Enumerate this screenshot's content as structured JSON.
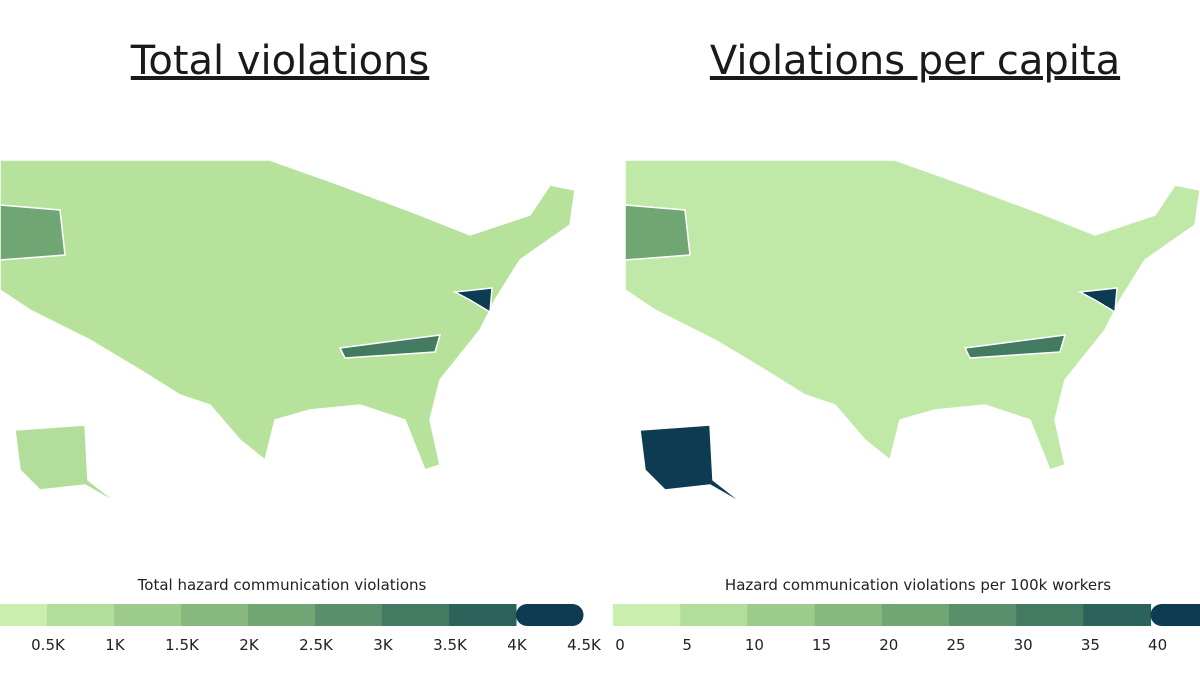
{
  "panels": [
    {
      "title": "Total violations",
      "legend": {
        "title": "Total hazard communication violations",
        "colors": [
          "#c9eeae",
          "#b3dd9a",
          "#9dcb8b",
          "#87b97f",
          "#70a574",
          "#598f6a",
          "#427a62",
          "#2b6259",
          "#0d3b52"
        ],
        "ticks": [
          {
            "value": 500,
            "label": "0.5K"
          },
          {
            "value": 1000,
            "label": "1K"
          },
          {
            "value": 1500,
            "label": "1.5K"
          },
          {
            "value": 2000,
            "label": "2K"
          },
          {
            "value": 2500,
            "label": "2.5K"
          },
          {
            "value": 3000,
            "label": "3K"
          },
          {
            "value": 3500,
            "label": "3.5K"
          },
          {
            "value": 4000,
            "label": "4K"
          },
          {
            "value": 4500,
            "label": "4.5K"
          }
        ]
      }
    },
    {
      "title": "Violations per capita",
      "legend": {
        "title": "Hazard communication violations per 100k workers",
        "colors": [
          "#c9eeae",
          "#b3dd9a",
          "#9dcb8b",
          "#87b97f",
          "#70a574",
          "#598f6a",
          "#427a62",
          "#2b6259",
          "#0d3b52"
        ],
        "ticks": [
          0,
          5,
          10,
          15,
          20,
          25,
          30,
          35,
          40
        ]
      }
    }
  ]
}
